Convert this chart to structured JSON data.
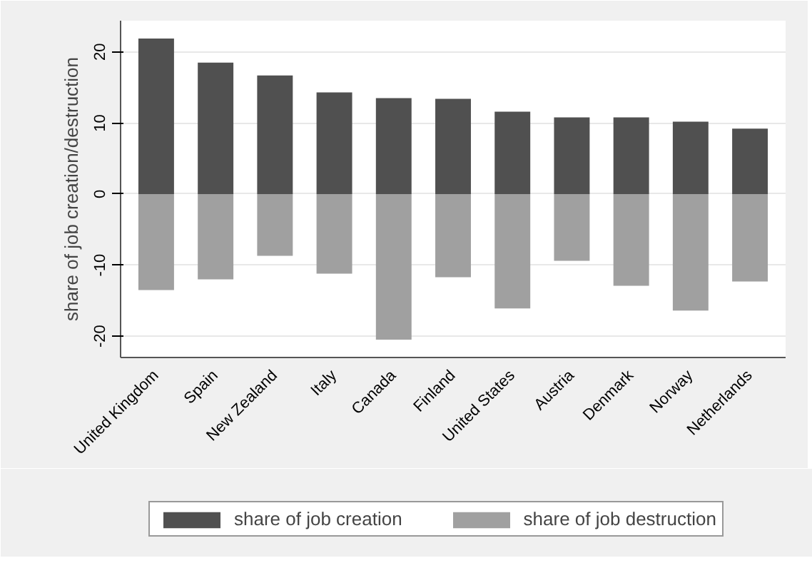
{
  "chart_data": {
    "type": "bar",
    "ylabel": "share of job creation/destruction",
    "categories": [
      "United Kingdom",
      "Spain",
      "New Zealand",
      "Italy",
      "Canada",
      "Finland",
      "United States",
      "Austria",
      "Denmark",
      "Norway",
      "Netherlands"
    ],
    "series": [
      {
        "name": "share of job creation",
        "color": "#505050",
        "values": [
          21.9,
          18.5,
          16.7,
          14.3,
          13.5,
          13.4,
          11.6,
          10.8,
          10.8,
          10.2,
          9.2
        ]
      },
      {
        "name": "share of job destruction",
        "color": "#a0a0a0",
        "values": [
          -13.5,
          -12.0,
          -8.7,
          -11.2,
          -20.5,
          -11.7,
          -16.1,
          -9.4,
          -12.9,
          -16.4,
          -12.3
        ]
      }
    ],
    "ylim": [
      -23,
      24.4
    ],
    "yticks": [
      -20,
      -10,
      0,
      10,
      20
    ],
    "stacked": true,
    "grid": "y",
    "legend": "bottom"
  }
}
